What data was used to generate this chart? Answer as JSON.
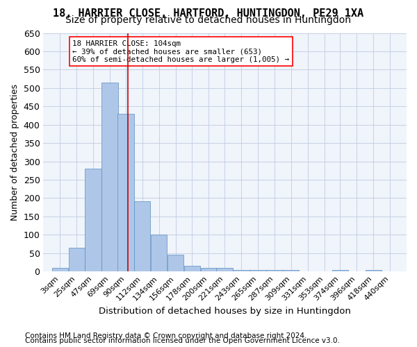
{
  "title1": "18, HARRIER CLOSE, HARTFORD, HUNTINGDON, PE29 1XA",
  "title2": "Size of property relative to detached houses in Huntingdon",
  "xlabel": "Distribution of detached houses by size in Huntingdon",
  "ylabel": "Number of detached properties",
  "footnote1": "Contains HM Land Registry data © Crown copyright and database right 2024.",
  "footnote2": "Contains public sector information licensed under the Open Government Licence v3.0.",
  "annotation_line1": "18 HARRIER CLOSE: 104sqm",
  "annotation_line2": "← 39% of detached houses are smaller (653)",
  "annotation_line3": "60% of semi-detached houses are larger (1,005) →",
  "bar_color": "#aec6e8",
  "bar_edge_color": "#5a8fc0",
  "ref_line_x": 104,
  "ref_line_color": "#cc0000",
  "categories": [
    "3sqm",
    "25sqm",
    "47sqm",
    "69sqm",
    "90sqm",
    "112sqm",
    "134sqm",
    "156sqm",
    "178sqm",
    "200sqm",
    "221sqm",
    "243sqm",
    "265sqm",
    "287sqm",
    "309sqm",
    "331sqm",
    "353sqm",
    "374sqm",
    "396sqm",
    "418sqm",
    "440sqm"
  ],
  "bin_edges": [
    3,
    25,
    47,
    69,
    90,
    112,
    134,
    156,
    178,
    200,
    221,
    243,
    265,
    287,
    309,
    331,
    353,
    374,
    396,
    418,
    440
  ],
  "values": [
    10,
    65,
    280,
    515,
    430,
    192,
    100,
    46,
    15,
    10,
    10,
    5,
    5,
    5,
    5,
    0,
    0,
    5,
    0,
    5
  ],
  "ylim": [
    0,
    650
  ],
  "yticks": [
    0,
    50,
    100,
    150,
    200,
    250,
    300,
    350,
    400,
    450,
    500,
    550,
    600,
    650
  ],
  "bg_color": "#f0f4fb",
  "grid_color": "#c0cce0",
  "title1_fontsize": 11,
  "title2_fontsize": 10,
  "axis_fontsize": 9,
  "footnote_fontsize": 7.5
}
